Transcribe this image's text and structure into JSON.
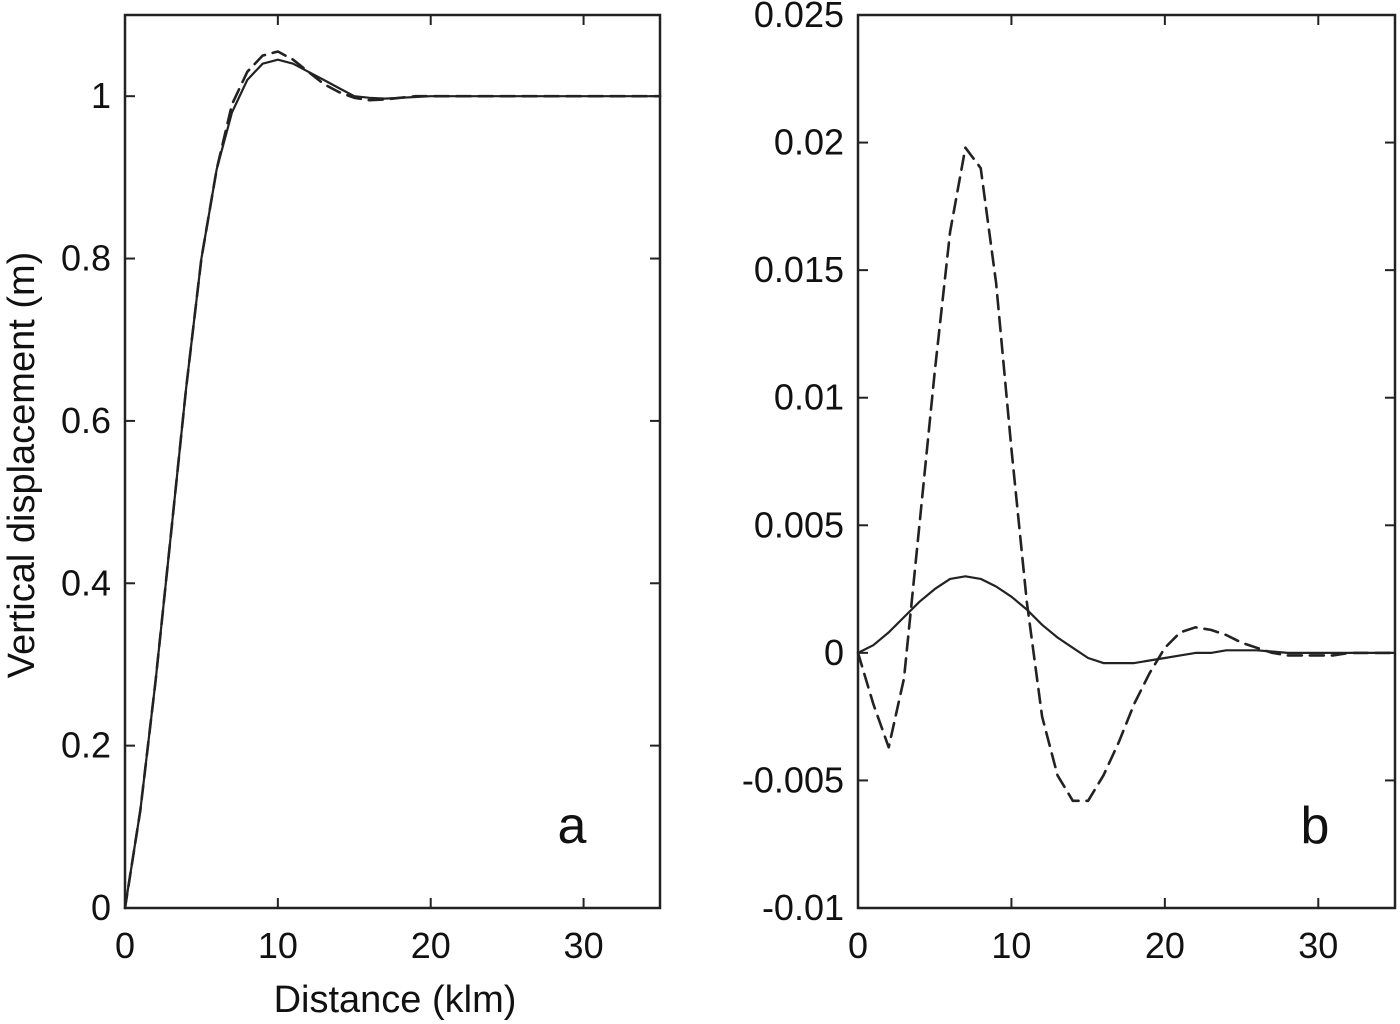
{
  "chart_data": [
    {
      "panel": "a",
      "type": "line",
      "title": "",
      "xlabel": "Distance (klm)",
      "ylabel": "Vertical displacement (m)",
      "xlim": [
        0,
        35
      ],
      "ylim": [
        0,
        1.1
      ],
      "xticks": [
        0,
        10,
        20,
        30
      ],
      "yticks": [
        0,
        0.2,
        0.4,
        0.6,
        0.8,
        1
      ],
      "xtick_labels": [
        "0",
        "10",
        "20",
        "30"
      ],
      "ytick_labels": [
        "0",
        "0.2",
        "0.4",
        "0.6",
        "0.8",
        "1"
      ],
      "grid": false,
      "legend": "none",
      "panel_label": "a",
      "series": [
        {
          "style": "solid",
          "color": "#222222",
          "x": [
            0,
            1,
            2,
            3,
            4,
            5,
            6,
            7,
            8,
            9,
            10,
            11,
            12,
            13,
            14,
            15,
            16,
            17,
            18,
            19,
            20,
            22,
            25,
            28,
            30,
            35
          ],
          "y": [
            0,
            0.12,
            0.28,
            0.46,
            0.64,
            0.8,
            0.91,
            0.98,
            1.02,
            1.04,
            1.045,
            1.04,
            1.03,
            1.02,
            1.01,
            1.0,
            0.998,
            0.997,
            0.998,
            0.999,
            1.0,
            1.0,
            1.0,
            1.0,
            1.0,
            1.0
          ]
        },
        {
          "style": "dashed",
          "color": "#222222",
          "x": [
            0,
            1,
            2,
            3,
            4,
            5,
            6,
            7,
            8,
            9,
            10,
            11,
            12,
            13,
            14,
            15,
            16,
            17,
            18,
            19,
            20,
            22,
            25,
            28,
            30,
            35
          ],
          "y": [
            0,
            0.12,
            0.28,
            0.46,
            0.64,
            0.8,
            0.91,
            0.99,
            1.03,
            1.05,
            1.055,
            1.045,
            1.03,
            1.015,
            1.005,
            0.998,
            0.995,
            0.996,
            0.998,
            1.0,
            1.0,
            1.0,
            1.0,
            1.0,
            1.0,
            1.0
          ]
        }
      ]
    },
    {
      "panel": "b",
      "type": "line",
      "title": "",
      "xlabel": "",
      "ylabel": "",
      "xlim": [
        0,
        35
      ],
      "ylim": [
        -0.01,
        0.025
      ],
      "xticks": [
        0,
        10,
        20,
        30
      ],
      "yticks": [
        -0.01,
        -0.005,
        0,
        0.005,
        0.01,
        0.015,
        0.02,
        0.025
      ],
      "xtick_labels": [
        "0",
        "10",
        "20",
        "30"
      ],
      "ytick_labels": [
        "-0.01",
        "-0.005",
        "0",
        "0.005",
        "0.01",
        "0.015",
        "0.02",
        "0.025"
      ],
      "grid": false,
      "legend": "none",
      "panel_label": "b",
      "series": [
        {
          "style": "solid",
          "color": "#222222",
          "x": [
            0,
            1,
            2,
            3,
            4,
            5,
            6,
            7,
            8,
            9,
            10,
            11,
            12,
            13,
            14,
            15,
            16,
            17,
            18,
            19,
            20,
            21,
            22,
            23,
            24,
            26,
            28,
            30,
            32,
            35
          ],
          "y": [
            0,
            0.0003,
            0.0008,
            0.0014,
            0.002,
            0.0025,
            0.0029,
            0.003,
            0.0029,
            0.0026,
            0.0022,
            0.0017,
            0.0011,
            0.0006,
            0.0002,
            -0.0002,
            -0.0004,
            -0.0004,
            -0.0004,
            -0.0003,
            -0.0002,
            -0.0001,
            0.0,
            0.0,
            0.0001,
            0.0001,
            0.0,
            0.0,
            0.0,
            0.0
          ]
        },
        {
          "style": "dashed",
          "color": "#222222",
          "x": [
            0,
            1,
            2,
            3,
            4,
            5,
            6,
            7,
            8,
            9,
            10,
            11,
            12,
            13,
            14,
            15,
            16,
            17,
            18,
            19,
            20,
            21,
            22,
            23,
            24,
            25,
            26,
            27,
            28,
            29,
            30,
            31,
            32,
            33,
            35
          ],
          "y": [
            0,
            -0.002,
            -0.0037,
            -0.001,
            0.005,
            0.011,
            0.0165,
            0.0198,
            0.019,
            0.0145,
            0.008,
            0.002,
            -0.0025,
            -0.0048,
            -0.0058,
            -0.0058,
            -0.0048,
            -0.0035,
            -0.002,
            -0.0008,
            0.0002,
            0.0008,
            0.001,
            0.0009,
            0.0007,
            0.0004,
            0.0002,
            0.0,
            -0.0001,
            -0.0001,
            -0.0001,
            -0.0001,
            0.0,
            0.0,
            0.0
          ]
        }
      ]
    }
  ]
}
